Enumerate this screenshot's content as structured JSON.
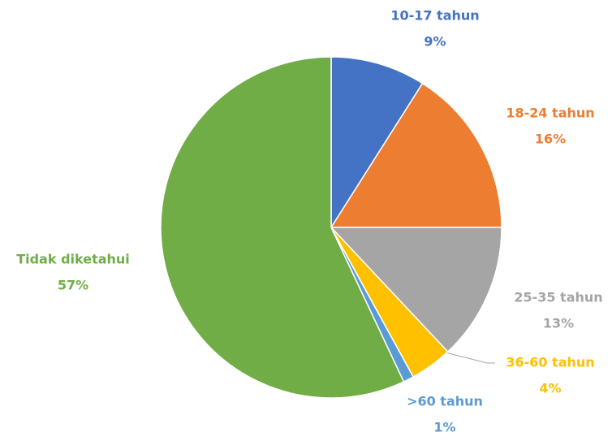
{
  "chart_data": {
    "type": "pie",
    "categories": [
      "10-17 tahun",
      "18-24 tahun",
      "25-35 tahun",
      "36-60 tahun",
      ">60 tahun",
      "Tidak diketahui"
    ],
    "values": [
      9,
      16,
      13,
      4,
      1,
      57
    ],
    "value_labels": [
      "9%",
      "16%",
      "13%",
      "4%",
      "1%",
      "57%"
    ],
    "colors": [
      "#4472c4",
      "#ed7d31",
      "#a5a5a5",
      "#ffc000",
      "#5b9bd5",
      "#70ad47"
    ]
  }
}
